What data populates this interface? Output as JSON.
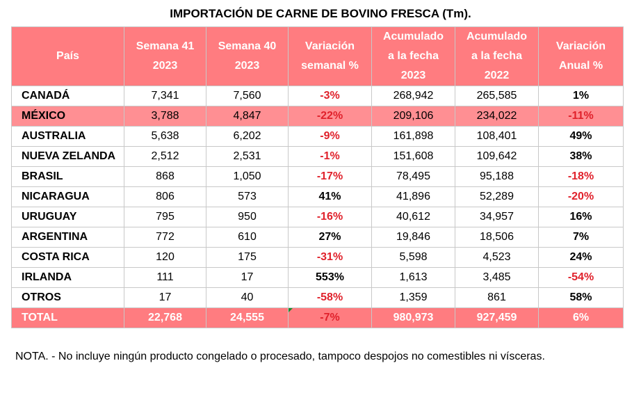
{
  "title": "IMPORTACIÓN DE CARNE DE BOVINO FRESCA (Tm).",
  "headers": [
    "País",
    "Semana 41 2023",
    "Semana 40 2023",
    "Variación semanal %",
    "Acumulado a la fecha 2023",
    "Acumulado a la fecha 2022",
    "Variación Anual %"
  ],
  "header_lines": [
    [
      "País"
    ],
    [
      "Semana 41",
      "2023"
    ],
    [
      "Semana 40",
      "2023"
    ],
    [
      "Variación",
      "semanal %"
    ],
    [
      "Acumulado",
      "a la fecha",
      "2023"
    ],
    [
      "Acumulado",
      "a la fecha",
      "2022"
    ],
    [
      "Variación",
      "Anual %"
    ]
  ],
  "rows": [
    {
      "pais": "CANADÁ",
      "s41": "7,341",
      "s40": "7,560",
      "var_sem": "-3%",
      "acum23": "268,942",
      "acum22": "265,585",
      "var_anual": "1%"
    },
    {
      "pais": "MÉXICO",
      "s41": "3,788",
      "s40": "4,847",
      "var_sem": "-22%",
      "acum23": "209,106",
      "acum22": "234,022",
      "var_anual": "-11%"
    },
    {
      "pais": "AUSTRALIA",
      "s41": "5,638",
      "s40": "6,202",
      "var_sem": "-9%",
      "acum23": "161,898",
      "acum22": "108,401",
      "var_anual": "49%"
    },
    {
      "pais": "NUEVA ZELANDA",
      "s41": "2,512",
      "s40": "2,531",
      "var_sem": "-1%",
      "acum23": "151,608",
      "acum22": "109,642",
      "var_anual": "38%"
    },
    {
      "pais": "BRASIL",
      "s41": "868",
      "s40": "1,050",
      "var_sem": "-17%",
      "acum23": "78,495",
      "acum22": "95,188",
      "var_anual": "-18%"
    },
    {
      "pais": "NICARAGUA",
      "s41": "806",
      "s40": "573",
      "var_sem": "41%",
      "acum23": "41,896",
      "acum22": "52,289",
      "var_anual": "-20%"
    },
    {
      "pais": "URUGUAY",
      "s41": "795",
      "s40": "950",
      "var_sem": "-16%",
      "acum23": "40,612",
      "acum22": "34,957",
      "var_anual": "16%"
    },
    {
      "pais": "ARGENTINA",
      "s41": "772",
      "s40": "610",
      "var_sem": "27%",
      "acum23": "19,846",
      "acum22": "18,506",
      "var_anual": "7%"
    },
    {
      "pais": "COSTA RICA",
      "s41": "120",
      "s40": "175",
      "var_sem": "-31%",
      "acum23": "5,598",
      "acum22": "4,523",
      "var_anual": "24%"
    },
    {
      "pais": "IRLANDA",
      "s41": "111",
      "s40": "17",
      "var_sem": "553%",
      "acum23": "1,613",
      "acum22": "3,485",
      "var_anual": "-54%"
    },
    {
      "pais": "OTROS",
      "s41": "17",
      "s40": "40",
      "var_sem": "-58%",
      "acum23": "1,359",
      "acum22": "861",
      "var_anual": "58%"
    }
  ],
  "highlight_country": "MÉXICO",
  "total": {
    "pais": "TOTAL",
    "s41": "22,768",
    "s40": "24,555",
    "var_sem": "-7%",
    "acum23": "980,973",
    "acum22": "927,459",
    "var_anual": "6%"
  },
  "colors": {
    "header_bg": "#ff7c80",
    "highlight_bg": "#ff8f93",
    "negative": "#e0212b"
  },
  "note": "NOTA. - No incluye ningún producto congelado o procesado, tampoco despojos no comestibles ni vísceras."
}
